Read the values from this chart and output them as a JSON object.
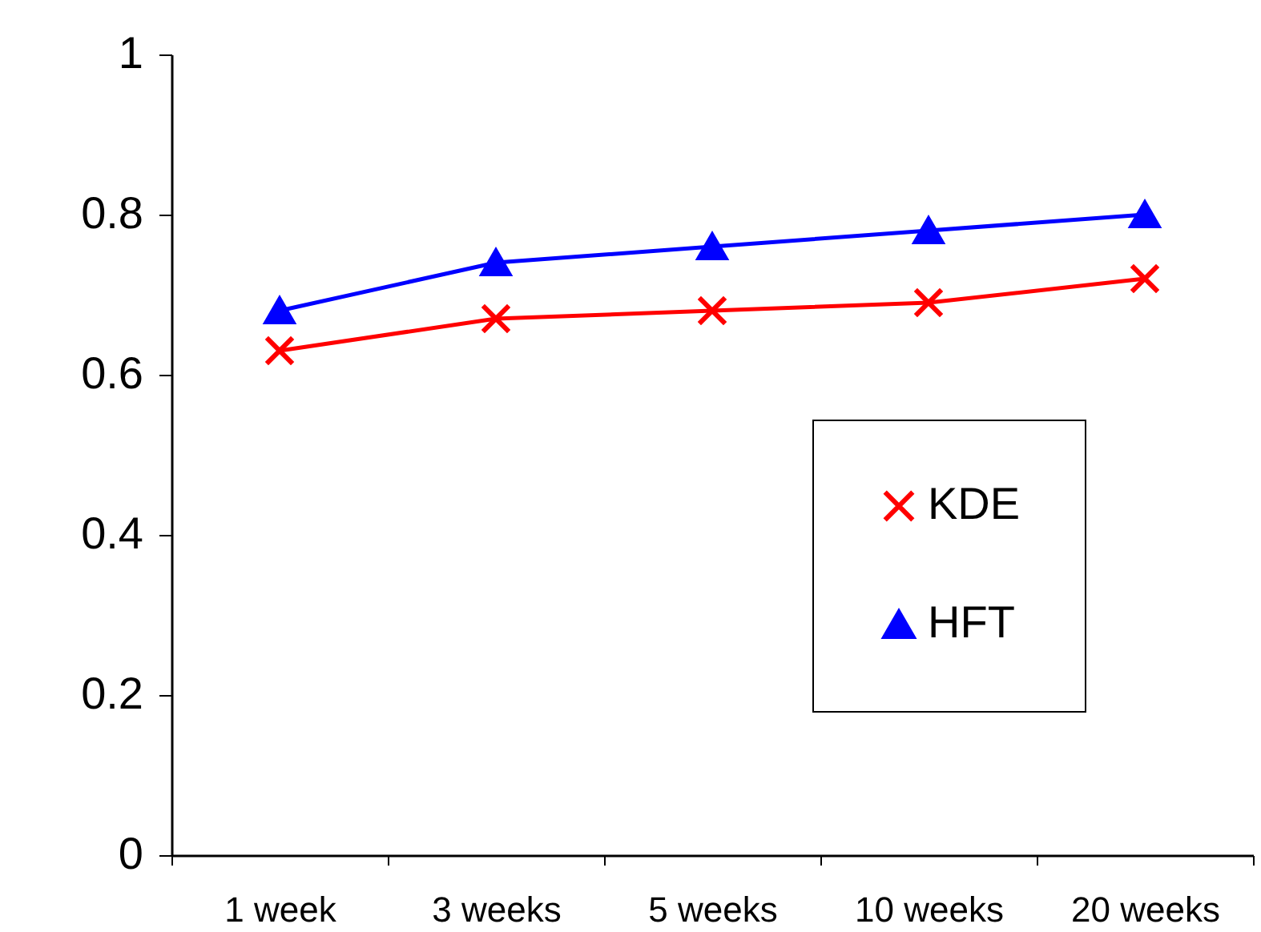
{
  "chart_data": {
    "type": "line",
    "categories": [
      "1 week",
      "3 weeks",
      "5 weeks",
      "10 weeks",
      "20 weeks"
    ],
    "series": [
      {
        "name": "KDE",
        "color": "#ff0000",
        "marker": "cross",
        "values": [
          0.63,
          0.67,
          0.68,
          0.69,
          0.72
        ]
      },
      {
        "name": "HFT",
        "color": "#0000ff",
        "marker": "triangle",
        "values": [
          0.68,
          0.74,
          0.76,
          0.78,
          0.8
        ]
      }
    ],
    "ylim": [
      0,
      1
    ],
    "yticks": [
      0,
      0.2,
      0.4,
      0.6,
      0.8,
      1
    ],
    "grid": false,
    "legend": "bottom right",
    "line_style": "solid"
  }
}
